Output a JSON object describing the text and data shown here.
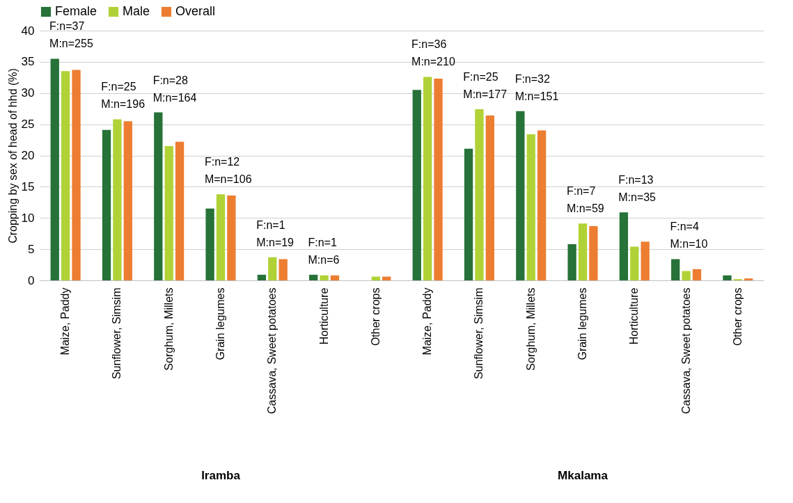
{
  "chart_data": {
    "type": "bar",
    "ylabel": "Cropping by sex of head of hhd (%)",
    "categories": [
      "Maize, Paddy",
      "Sunflower, Simsim",
      "Sorghum, Millets",
      "Grain legumes",
      "Cassava, Sweet potatoes",
      "Horticulture",
      "Other crops",
      "Maize, Paddy",
      "Sunflower, Simsim",
      "Sorghum, Millets",
      "Grain legumes",
      "Horticulture",
      "Cassava, Sweet potatoes",
      "Other crops"
    ],
    "series": [
      {
        "name": "Female",
        "color": "#267238",
        "values": [
          35.5,
          24.1,
          26.9,
          11.5,
          0.9,
          0.9,
          0,
          30.5,
          21.1,
          27.1,
          5.8,
          10.9,
          3.4,
          0.8
        ]
      },
      {
        "name": "Male",
        "color": "#b0d236",
        "values": [
          33.5,
          25.8,
          21.5,
          13.8,
          3.7,
          0.8,
          0.6,
          32.6,
          27.4,
          23.4,
          9.1,
          5.4,
          1.5,
          0.2
        ]
      },
      {
        "name": "Overall",
        "color": "#ed7d31",
        "values": [
          33.7,
          25.5,
          22.2,
          13.6,
          3.4,
          0.8,
          0.6,
          32.3,
          26.4,
          24.0,
          8.7,
          6.2,
          1.8,
          0.3
        ]
      }
    ],
    "ylim": [
      0,
      40
    ],
    "yticks": [
      0,
      5,
      10,
      15,
      20,
      25,
      30,
      35,
      40
    ],
    "grid": "y",
    "legend": "top",
    "annotations": [
      "F:n=37\nM:n=255",
      "F:n=25\nM:n=196",
      "F:n=28\nM:n=164",
      "F:n=12\nM=n=106",
      "F:n=1\nM:n=19",
      "F:n=1\nM:n=6",
      "F:n=36\nM:n=210",
      "F:n=25\nM:n=177",
      "F:n=32\nM:n=151",
      "F:n=7\nM:n=59",
      "F:n=13\nM:n=35",
      "F:n=4\nM:n=10",
      "Iramba",
      "Mkalama"
    ]
  }
}
